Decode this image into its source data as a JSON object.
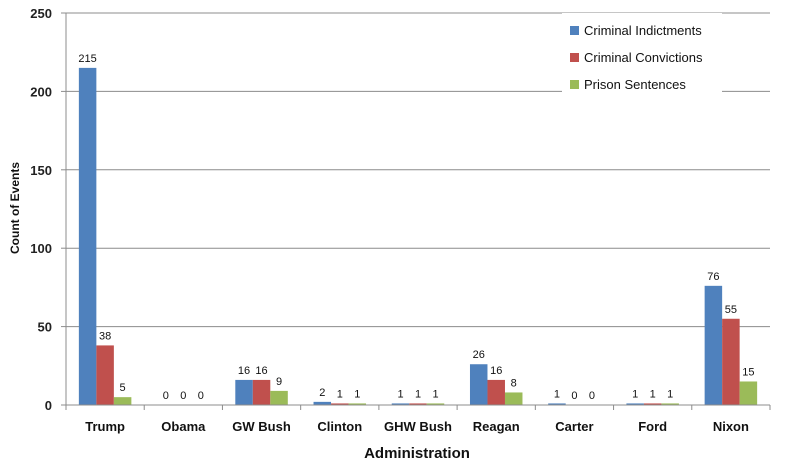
{
  "chart_data": {
    "type": "bar",
    "title": "",
    "xlabel": "Administration",
    "ylabel": "Count of Events",
    "ylim": [
      0,
      250
    ],
    "yticks": [
      0,
      50,
      100,
      150,
      200,
      250
    ],
    "grid": true,
    "legend_position": "top-right",
    "categories": [
      "Trump",
      "Obama",
      "GW Bush",
      "Clinton",
      "GHW Bush",
      "Reagan",
      "Carter",
      "Ford",
      "Nixon"
    ],
    "series": [
      {
        "name": "Criminal Indictments",
        "color": "#4F81BD",
        "values": [
          215,
          0,
          16,
          2,
          1,
          26,
          1,
          1,
          76
        ]
      },
      {
        "name": "Criminal Convictions",
        "color": "#C0504D",
        "values": [
          38,
          0,
          16,
          1,
          1,
          16,
          0,
          1,
          55
        ]
      },
      {
        "name": "Prison Sentences",
        "color": "#9BBB59",
        "values": [
          5,
          0,
          9,
          1,
          1,
          8,
          0,
          1,
          15
        ]
      }
    ]
  }
}
